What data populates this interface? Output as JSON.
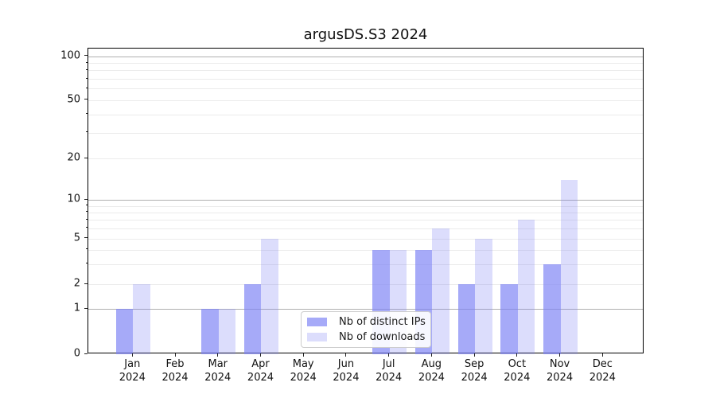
{
  "title": "argusDS.S3 2024",
  "legend": {
    "items": [
      {
        "label": "Nb of distinct IPs",
        "series": "distinct_ips"
      },
      {
        "label": "Nb of downloads",
        "series": "downloads"
      }
    ],
    "position": "lower center"
  },
  "colors": {
    "bar_distinct_ips": "rgba(124,129,245,0.68)",
    "bar_downloads": "rgba(124,129,245,0.27)",
    "bar_distinct_ips_hex": "#a8aaf8",
    "bar_downloads_hex": "#dadcfa",
    "grid_major": "#b0b0b0",
    "grid_minor": "#ebebeb",
    "spine": "#000000"
  },
  "chart_data": {
    "type": "bar",
    "title": "argusDS.S3 2024",
    "categories": [
      "Jan 2024",
      "Feb 2024",
      "Mar 2024",
      "Apr 2024",
      "May 2024",
      "Jun 2024",
      "Jul 2024",
      "Aug 2024",
      "Sep 2024",
      "Oct 2024",
      "Nov 2024",
      "Dec 2024"
    ],
    "series": [
      {
        "name": "Nb of distinct IPs",
        "color_key": "bar_distinct_ips",
        "values": [
          1,
          0,
          1,
          2,
          0,
          0,
          4,
          4,
          2,
          2,
          3,
          0
        ]
      },
      {
        "name": "Nb of downloads",
        "color_key": "bar_downloads",
        "values": [
          2,
          0,
          1,
          5,
          0,
          0,
          4,
          6,
          5,
          7,
          14,
          0
        ]
      }
    ],
    "xlabel": "",
    "ylabel": "",
    "yscale": "symlog-like (linear 0-1, log above)",
    "ylim": [
      0,
      115
    ],
    "yticks": [
      {
        "v": 0,
        "label": "0"
      },
      {
        "v": 1,
        "label": "1"
      },
      {
        "v": 2,
        "label": "2"
      },
      {
        "v": 5,
        "label": "5"
      },
      {
        "v": 10,
        "label": "10"
      },
      {
        "v": 20,
        "label": "20"
      },
      {
        "v": 50,
        "label": "50"
      },
      {
        "v": 100,
        "label": "100"
      }
    ],
    "gridlines_major": [
      1,
      10,
      100
    ],
    "gridlines_minor": [
      2,
      3,
      4,
      5,
      6,
      7,
      8,
      9,
      20,
      30,
      40,
      50,
      60,
      70,
      80,
      90
    ],
    "grid": "horizontal only",
    "legend_position": "lower center inside plot"
  }
}
